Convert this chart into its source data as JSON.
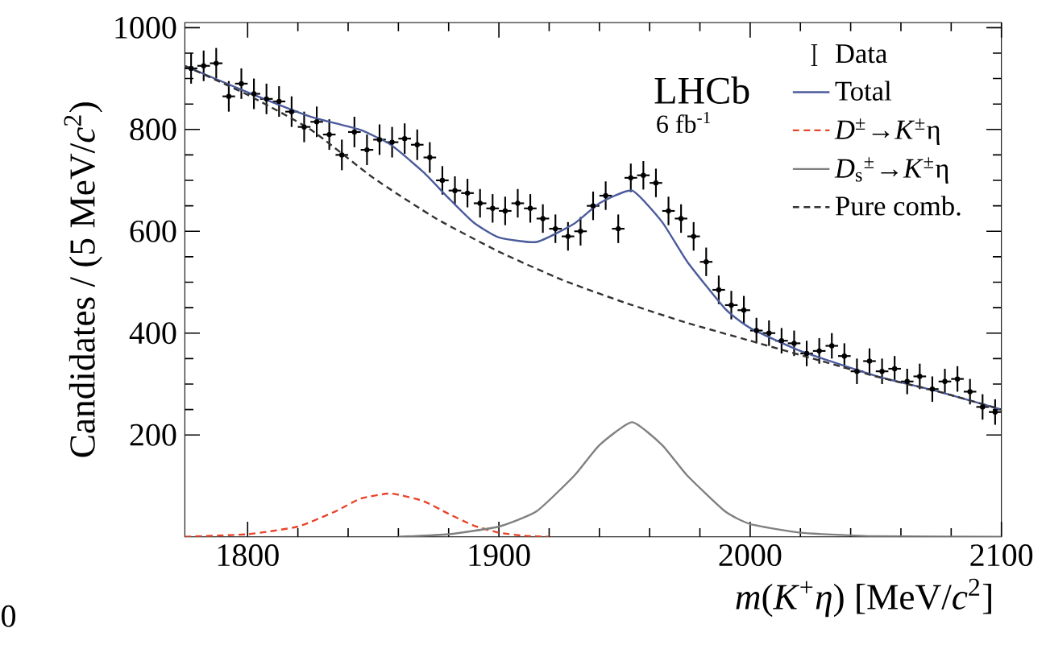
{
  "chart_data": {
    "type": "line",
    "xlabel": "*m*(*K*$^{+}$*η*) [MeV/*c*$^{2}$]",
    "ylabel": "Candidates / (5 MeV/*c*$^{2}$)",
    "xlim": [
      1775,
      2100
    ],
    "ylim": [
      0,
      1010
    ],
    "xticks": [
      1800,
      1900,
      2000,
      2100
    ],
    "yticks": [
      200,
      400,
      600,
      800,
      1000
    ],
    "legend": "top right",
    "annotations": [
      "LHCb",
      "6 fb$^{-1}$",
      "0"
    ],
    "series": [
      {
        "name": "Data",
        "type": "scatter",
        "marker": "circle",
        "color": "#000000",
        "x": [
          1777.5,
          1782.5,
          1787.5,
          1792.5,
          1797.5,
          1802.5,
          1807.5,
          1812.5,
          1817.5,
          1822.5,
          1827.5,
          1832.5,
          1837.5,
          1842.5,
          1847.5,
          1852.5,
          1857.5,
          1862.5,
          1867.5,
          1872.5,
          1877.5,
          1882.5,
          1887.5,
          1892.5,
          1897.5,
          1902.5,
          1907.5,
          1912.5,
          1917.5,
          1922.5,
          1927.5,
          1932.5,
          1937.5,
          1942.5,
          1947.5,
          1952.5,
          1957.5,
          1962.5,
          1967.5,
          1972.5,
          1977.5,
          1982.5,
          1987.5,
          1992.5,
          1997.5,
          2002.5,
          2007.5,
          2012.5,
          2017.5,
          2022.5,
          2027.5,
          2032.5,
          2037.5,
          2042.5,
          2047.5,
          2052.5,
          2057.5,
          2062.5,
          2067.5,
          2072.5,
          2077.5,
          2082.5,
          2087.5,
          2092.5,
          2097.5
        ],
        "values": [
          920,
          925,
          930,
          865,
          890,
          870,
          860,
          855,
          835,
          805,
          815,
          790,
          750,
          795,
          760,
          780,
          775,
          782,
          770,
          745,
          700,
          680,
          675,
          655,
          645,
          640,
          655,
          645,
          625,
          605,
          590,
          600,
          650,
          670,
          605,
          705,
          710,
          695,
          640,
          625,
          590,
          540,
          485,
          455,
          445,
          405,
          400,
          385,
          380,
          360,
          365,
          375,
          355,
          325,
          345,
          325,
          330,
          305,
          315,
          290,
          305,
          310,
          285,
          255,
          245
        ],
        "errors": [
          30,
          30,
          30,
          30,
          30,
          30,
          30,
          30,
          30,
          30,
          30,
          30,
          30,
          30,
          30,
          30,
          30,
          30,
          30,
          30,
          28,
          28,
          28,
          28,
          28,
          28,
          28,
          28,
          28,
          28,
          28,
          28,
          28,
          28,
          28,
          28,
          28,
          28,
          28,
          28,
          28,
          28,
          28,
          28,
          28,
          25,
          25,
          25,
          25,
          25,
          25,
          25,
          25,
          25,
          25,
          25,
          25,
          25,
          25,
          25,
          25,
          25,
          25,
          25,
          25
        ],
        "xerrors": [
          2.5,
          2.5,
          2.5,
          2.5,
          2.5,
          2.5,
          2.5,
          2.5,
          2.5,
          2.5,
          2.5,
          2.5,
          2.5,
          2.5,
          2.5,
          2.5,
          2.5,
          2.5,
          2.5,
          2.5,
          2.5,
          2.5,
          2.5,
          2.5,
          2.5,
          2.5,
          2.5,
          2.5,
          2.5,
          2.5,
          2.5,
          2.5,
          2.5,
          2.5,
          2.5,
          2.5,
          2.5,
          2.5,
          2.5,
          2.5,
          2.5,
          2.5,
          2.5,
          2.5,
          2.5,
          2.5,
          2.5,
          2.5,
          2.5,
          2.5,
          2.5,
          2.5,
          2.5,
          2.5,
          2.5,
          2.5,
          2.5,
          2.5,
          2.5,
          2.5,
          2.5,
          2.5,
          2.5,
          2.5,
          2.5
        ]
      },
      {
        "name": "Total",
        "line_style": "solid",
        "color": "#4b5b9b",
        "x": [
          1775,
          1800,
          1825,
          1835,
          1845,
          1857,
          1870,
          1880,
          1890,
          1900,
          1915,
          1930,
          1940,
          1953,
          1965,
          1975,
          1990,
          2000,
          2020,
          2050,
          2075,
          2100
        ],
        "values": [
          925,
          873,
          825,
          812,
          799,
          770,
          716,
          665,
          617,
          588,
          579,
          615,
          655,
          680,
          618,
          540,
          448,
          410,
          365,
          316,
          285,
          250
        ]
      },
      {
        "name": "*D*$^{±}$→*K*$^{±}$η",
        "line_style": "dashed",
        "color": "#e8442a",
        "x": [
          1775,
          1800,
          1820,
          1835,
          1845,
          1857,
          1870,
          1880,
          1890,
          1900,
          1910,
          1920
        ],
        "values": [
          0,
          5,
          20,
          50,
          75,
          85,
          70,
          45,
          22,
          8,
          2,
          0
        ]
      },
      {
        "name": "*D*$_{s}$$^{±}$→*K*$^{±}$η",
        "line_style": "solid",
        "color": "#808080",
        "x": [
          1860,
          1880,
          1900,
          1915,
          1930,
          1940,
          1953,
          1965,
          1975,
          1990,
          2000,
          2020,
          2050,
          2100
        ],
        "values": [
          0,
          5,
          20,
          50,
          120,
          180,
          225,
          180,
          120,
          50,
          25,
          8,
          1,
          0
        ]
      },
      {
        "name": "Pure comb.",
        "line_style": "dashed",
        "color": "#333333",
        "x": [
          1775,
          1800,
          1825,
          1850,
          1875,
          1900,
          1925,
          1950,
          1975,
          2000,
          2025,
          2050,
          2075,
          2100
        ],
        "values": [
          925,
          868,
          800,
          705,
          625,
          560,
          505,
          460,
          420,
          385,
          350,
          315,
          285,
          250
        ]
      }
    ]
  }
}
